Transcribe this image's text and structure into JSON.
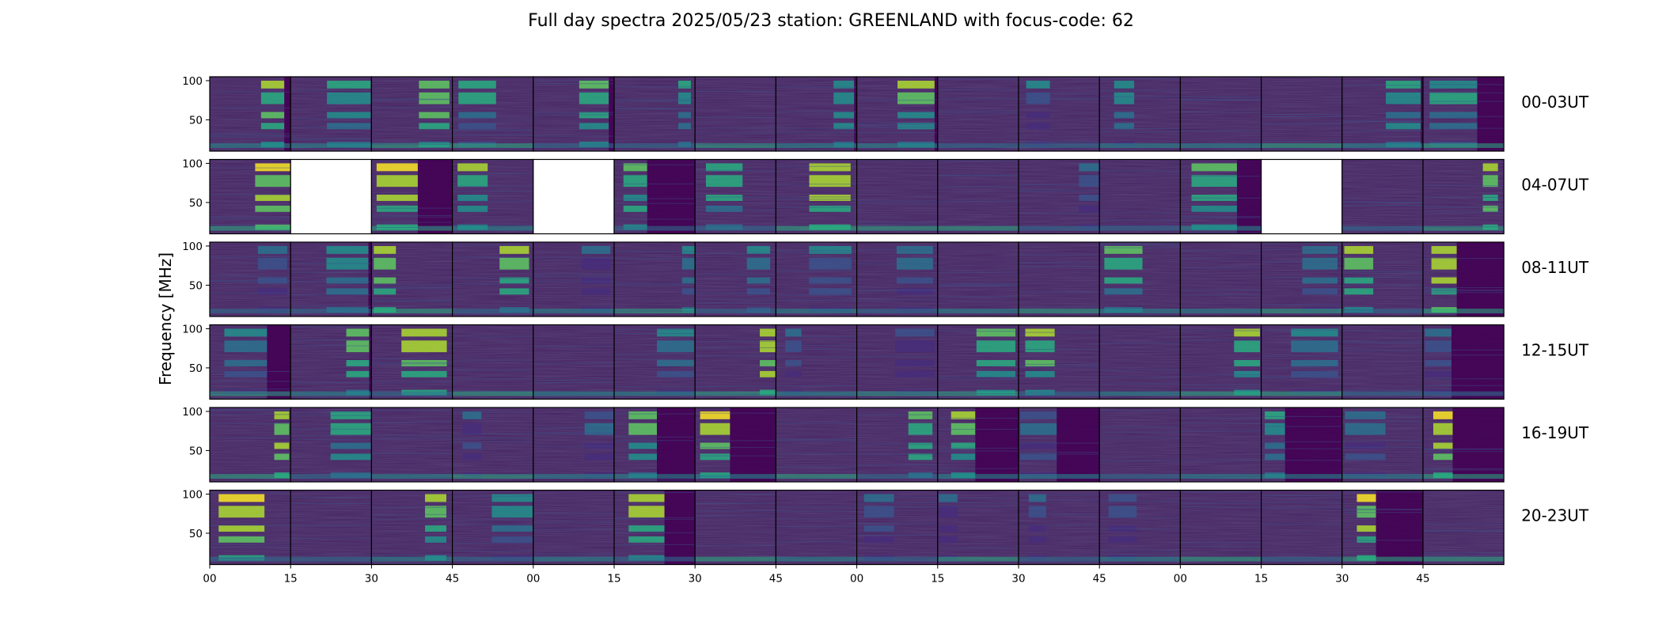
{
  "chart_data": {
    "type": "heatmap",
    "title": "Full day spectra 2025/05/23 station: GREENLAND with focus-code: 62",
    "ylabel": "Frequency [MHz]",
    "xlabel": "",
    "y_ticks": [
      "100",
      "50"
    ],
    "x_ticks": [
      "00",
      "15",
      "30",
      "45",
      "00",
      "15",
      "30",
      "45",
      "00",
      "15",
      "30",
      "45",
      "00",
      "15",
      "30",
      "45"
    ],
    "rows": [
      "00-03UT",
      "04-07UT",
      "08-11UT",
      "12-15UT",
      "16-19UT",
      "20-23UT"
    ],
    "missing_panels": [
      [
        1,
        1
      ],
      [
        1,
        4
      ],
      [
        1,
        13
      ]
    ],
    "colormap": "viridis",
    "colors": {
      "low": "#440154",
      "mid": "#31688e",
      "high": "#fde725",
      "missing": "#ffffff"
    },
    "panels_per_row": 16,
    "panel_minutes": 15,
    "freq_range_mhz": [
      10,
      105
    ]
  }
}
